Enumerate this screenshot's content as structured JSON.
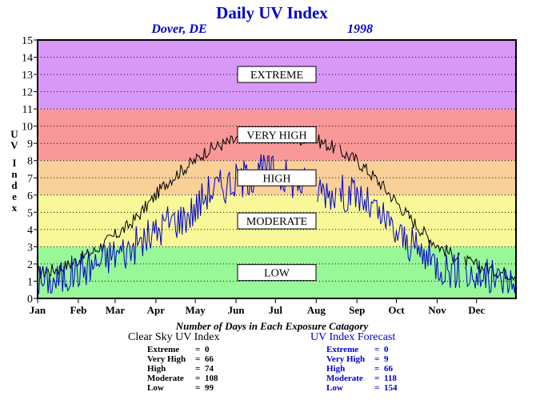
{
  "chart_data": {
    "type": "line",
    "title": "Daily UV Index",
    "subtitle_location": "Dover, DE",
    "subtitle_year": "1998",
    "ylabel": "UV Index",
    "ylim": [
      0,
      15
    ],
    "yticks": [
      0,
      1,
      2,
      3,
      4,
      5,
      6,
      7,
      8,
      9,
      10,
      11,
      12,
      13,
      14,
      15
    ],
    "xlim": [
      1,
      365
    ],
    "month_labels": [
      "Jan",
      "Feb",
      "Mar",
      "Apr",
      "May",
      "Jun",
      "Jul",
      "Aug",
      "Sep",
      "Oct",
      "Nov",
      "Dec"
    ],
    "month_start_days": [
      1,
      32,
      60,
      91,
      121,
      152,
      182,
      213,
      244,
      274,
      305,
      335
    ],
    "grid": true,
    "bands": [
      {
        "name": "LOW",
        "from": 0,
        "to": 3,
        "color": "#98f898"
      },
      {
        "name": "MODERATE",
        "from": 3,
        "to": 6,
        "color": "#f8f898"
      },
      {
        "name": "HIGH",
        "from": 6,
        "to": 8,
        "color": "#f8d098"
      },
      {
        "name": "VERY HIGH",
        "from": 8,
        "to": 11,
        "color": "#f89898"
      },
      {
        "name": "EXTREME",
        "from": 11,
        "to": 15,
        "color": "#d898f8"
      }
    ],
    "series": [
      {
        "name": "Clear Sky UV Index",
        "color": "#000000",
        "points": [
          [
            1,
            1.5
          ],
          [
            10,
            1.6
          ],
          [
            20,
            1.8
          ],
          [
            31,
            2.2
          ],
          [
            45,
            2.8
          ],
          [
            59,
            3.6
          ],
          [
            70,
            4.2
          ],
          [
            80,
            5.0
          ],
          [
            91,
            6.0
          ],
          [
            100,
            6.8
          ],
          [
            110,
            7.4
          ],
          [
            121,
            8.0
          ],
          [
            130,
            8.6
          ],
          [
            140,
            8.9
          ],
          [
            152,
            9.2
          ],
          [
            165,
            9.5
          ],
          [
            175,
            9.6
          ],
          [
            182,
            9.6
          ],
          [
            195,
            9.3
          ],
          [
            213,
            9.2
          ],
          [
            225,
            8.8
          ],
          [
            244,
            8.0
          ],
          [
            255,
            7.2
          ],
          [
            265,
            6.4
          ],
          [
            274,
            5.6
          ],
          [
            285,
            4.6
          ],
          [
            295,
            3.8
          ],
          [
            305,
            3.1
          ],
          [
            315,
            2.6
          ],
          [
            325,
            2.2
          ],
          [
            335,
            1.9
          ],
          [
            345,
            1.7
          ],
          [
            355,
            1.5
          ],
          [
            365,
            1.4
          ]
        ]
      },
      {
        "name": "UV Index Forecast",
        "color": "#0000cc",
        "points": [
          [
            1,
            1.0
          ],
          [
            10,
            0.9
          ],
          [
            20,
            1.2
          ],
          [
            31,
            1.6
          ],
          [
            45,
            2.0
          ],
          [
            59,
            2.6
          ],
          [
            70,
            2.8
          ],
          [
            80,
            3.3
          ],
          [
            91,
            3.8
          ],
          [
            100,
            4.5
          ],
          [
            110,
            4.6
          ],
          [
            121,
            5.2
          ],
          [
            130,
            6.2
          ],
          [
            140,
            6.5
          ],
          [
            152,
            6.8
          ],
          [
            165,
            7.2
          ],
          [
            175,
            7.4
          ],
          [
            182,
            7.3
          ],
          [
            195,
            6.9
          ],
          [
            213,
            6.4
          ],
          [
            225,
            6.2
          ],
          [
            244,
            6.0
          ],
          [
            255,
            5.2
          ],
          [
            265,
            4.5
          ],
          [
            274,
            3.8
          ],
          [
            285,
            3.1
          ],
          [
            295,
            2.5
          ],
          [
            305,
            2.0
          ],
          [
            315,
            1.7
          ],
          [
            325,
            1.5
          ],
          [
            335,
            1.3
          ],
          [
            345,
            1.2
          ],
          [
            355,
            1.0
          ],
          [
            365,
            0.9
          ]
        ]
      }
    ]
  },
  "stats": {
    "caption": "Number of Days in Each Exposure Catagory",
    "clear": {
      "title": "Clear Sky UV Index",
      "rows": [
        {
          "label": "Extreme",
          "value": "0"
        },
        {
          "label": "Very High",
          "value": "66"
        },
        {
          "label": "High",
          "value": "74"
        },
        {
          "label": "Moderate",
          "value": "108"
        },
        {
          "label": "Low",
          "value": "99"
        }
      ]
    },
    "forecast": {
      "title": "UV Index Forecast",
      "rows": [
        {
          "label": "Extreme",
          "value": "0"
        },
        {
          "label": "Very High",
          "value": "9"
        },
        {
          "label": "High",
          "value": "66"
        },
        {
          "label": "Moderate",
          "value": "118"
        },
        {
          "label": "Low",
          "value": "154"
        }
      ]
    }
  }
}
